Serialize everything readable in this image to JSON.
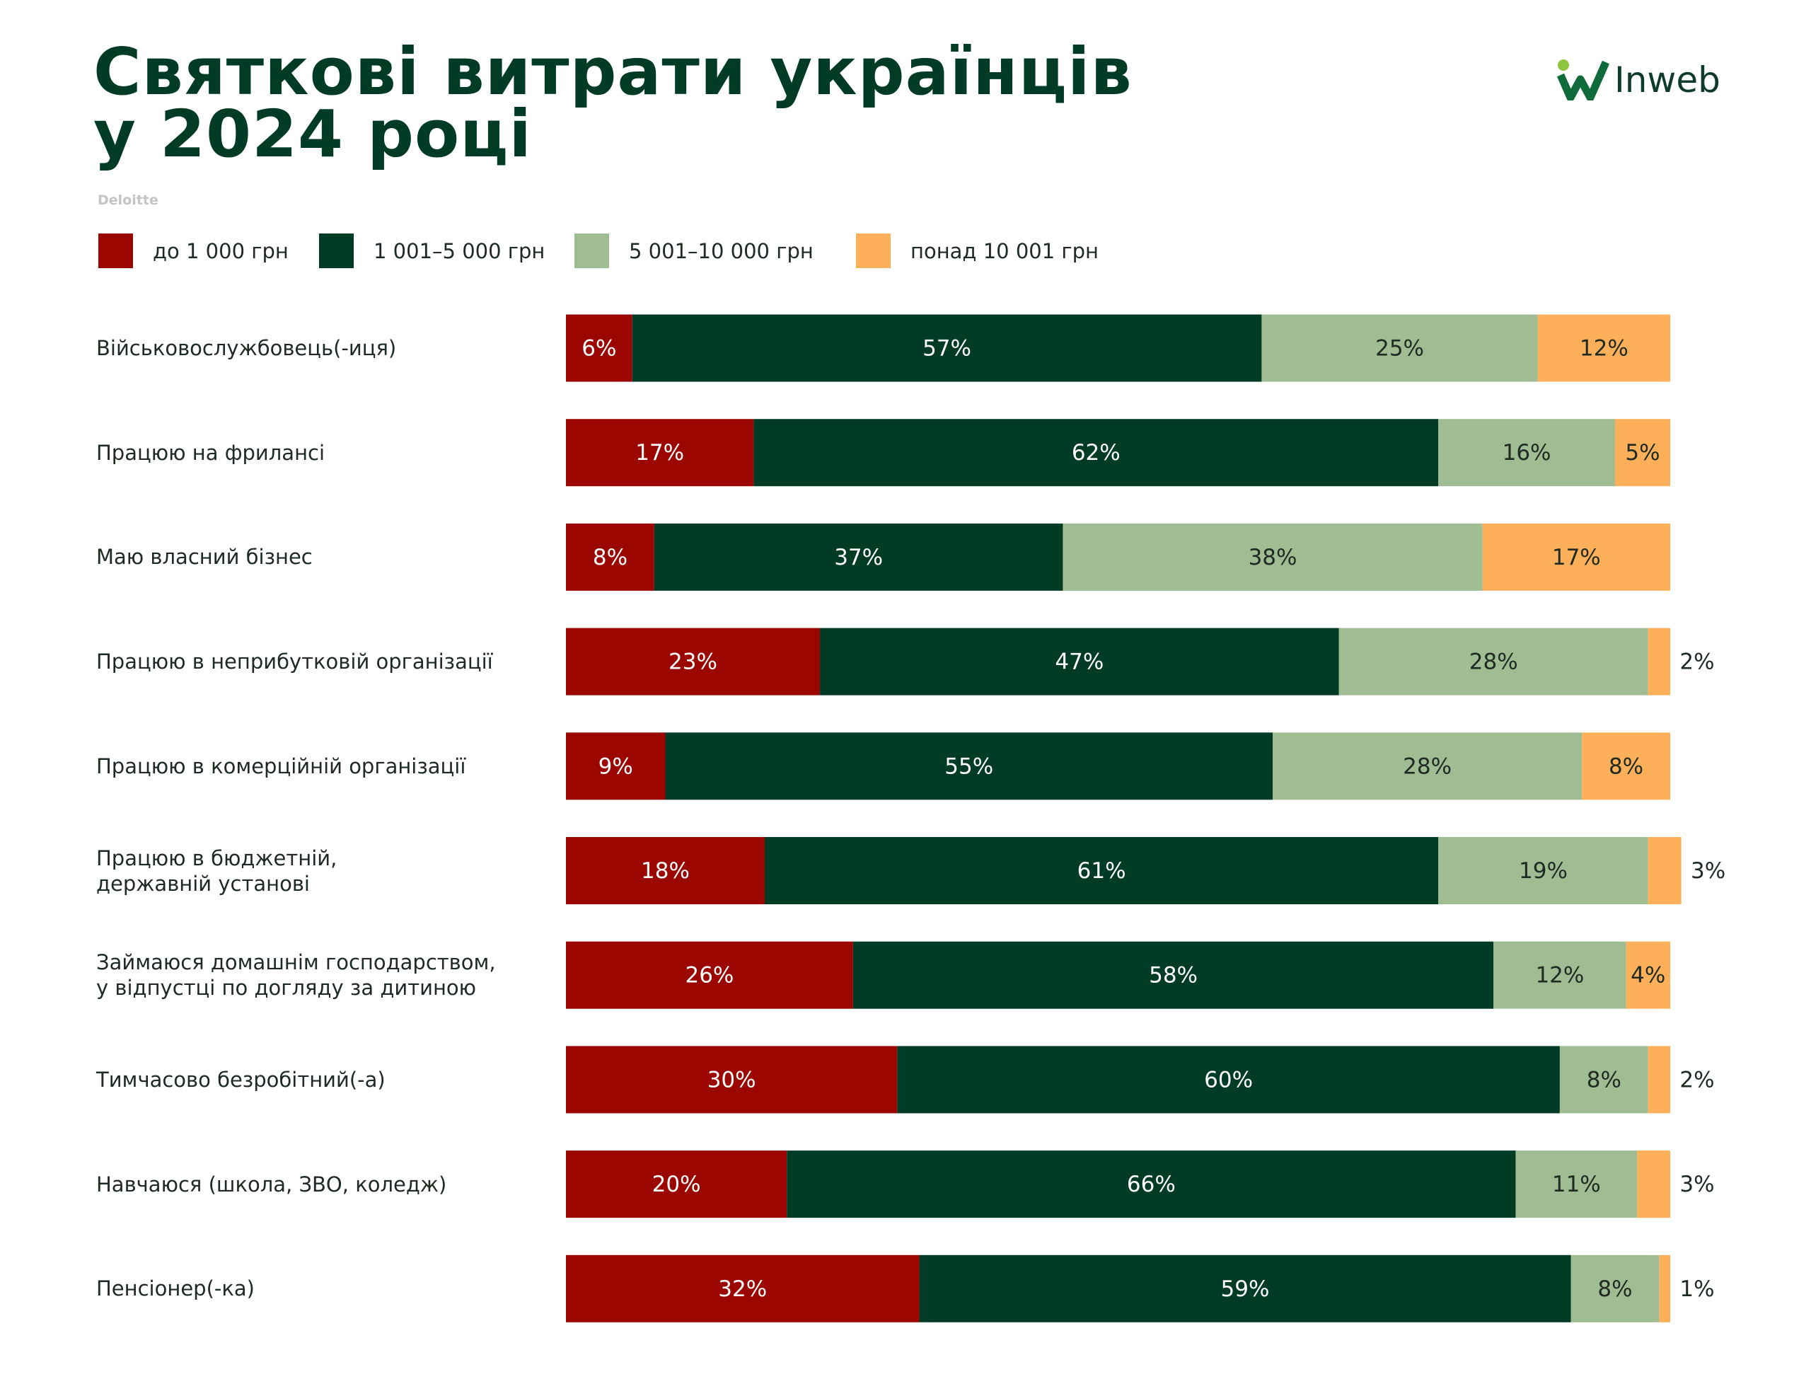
{
  "chart_data": {
    "type": "stacked-bar-horizontal",
    "title": "Святкові витрати українців\nу 2024 році",
    "source": "Deloitte",
    "logo": "Inweb",
    "legend": "top-left",
    "xlim": [
      0,
      100
    ],
    "categories": [
      "Військовослужбовець(-иця)",
      "Працюю на фрилансі",
      "Маю власний бізнес",
      "Працюю в неприбутковій організації",
      "Працюю в комерційній організації",
      "Працюю в бюджетній,\nдержавній установі",
      "Займаюся домашнім господарством,\nу відпустці по догляду за дитиною",
      "Тимчасово безробітний(-а)",
      "Навчаюся (школа, ЗВО, коледж)",
      "Пенсіонер(-ка)"
    ],
    "series": [
      {
        "name": "до 1 000 грн",
        "color": "#9b0600",
        "label_color": "#ffffff",
        "values": [
          6,
          17,
          8,
          23,
          9,
          18,
          26,
          30,
          20,
          32
        ],
        "value_labels": [
          "6%",
          "17%",
          "8%",
          "23%",
          "9%",
          "18%",
          "26%",
          "30%",
          "20%",
          "32%"
        ]
      },
      {
        "name": "1 001–5 000 грн",
        "color": "#003b26",
        "label_color": "#ffffff",
        "values": [
          57,
          62,
          37,
          47,
          55,
          61,
          58,
          60,
          66,
          59
        ],
        "value_labels": [
          "57%",
          "62%",
          "37%",
          "47%",
          "55%",
          "61%",
          "58%",
          "60%",
          "66%",
          "59%"
        ]
      },
      {
        "name": "5 001–10 000 грн",
        "color": "#a0bc93",
        "label_color": "#1e2a22",
        "values": [
          25,
          16,
          38,
          28,
          28,
          19,
          12,
          8,
          11,
          8
        ],
        "value_labels": [
          "25%",
          "16%",
          "38%",
          "28%",
          "28%",
          "19%",
          "12%",
          "8%",
          "11%",
          "8%"
        ]
      },
      {
        "name": "понад 10 001 грн",
        "color": "#fdb059",
        "label_color": "#1e2a22",
        "values": [
          12,
          5,
          17,
          2,
          8,
          3,
          4,
          2,
          3,
          1
        ],
        "value_labels": [
          "12%",
          "5%",
          "17%",
          "2%",
          "8%",
          "3%",
          "4%",
          "2%",
          "3%",
          "1%"
        ]
      }
    ]
  }
}
